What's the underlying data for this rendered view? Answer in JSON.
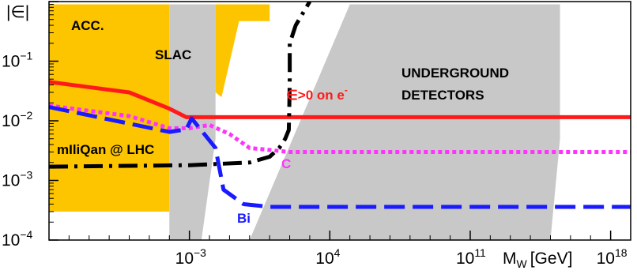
{
  "chart_data": {
    "type": "line",
    "title": "",
    "xlabel": "M_W [GeV]",
    "ylabel": "|∈|",
    "x_scale": "log",
    "y_scale": "log",
    "xlim": [
      1e-10,
      1e+19
    ],
    "ylim": [
      0.0001,
      1
    ],
    "x_ticks": [
      {
        "value": 0.001,
        "base": "10",
        "exp": "−3"
      },
      {
        "value": 10000,
        "base": "10",
        "exp": "4"
      },
      {
        "value": 100000000000,
        "base": "10",
        "exp": "11"
      },
      {
        "value": 1e+18,
        "base": "10",
        "exp": "18"
      }
    ],
    "y_ticks": [
      {
        "value": 0.1,
        "base": "10",
        "exp": "−1"
      },
      {
        "value": 0.01,
        "base": "10",
        "exp": "−2"
      },
      {
        "value": 0.001,
        "base": "10",
        "exp": "−3"
      },
      {
        "value": 0.0001,
        "base": "10",
        "exp": "−4"
      }
    ],
    "regions": [
      {
        "label": "ACC.",
        "color": "#fdc400",
        "points": [
          [
            1e-10,
            0.9
          ],
          [
            0.0001,
            0.9
          ],
          [
            0.0001,
            0.0003
          ],
          [
            1e-10,
            0.0003
          ]
        ]
      },
      {
        "label": "SLAC",
        "color": "#c8c8c8",
        "points": [
          [
            0.0001,
            0.9
          ],
          [
            0.02,
            0.9
          ],
          [
            0.02,
            0.005
          ],
          [
            0.004,
            0.0001
          ],
          [
            0.0001,
            0.0001
          ]
        ]
      },
      {
        "label": "",
        "color": "#fdc400",
        "points": [
          [
            0.02,
            0.9
          ],
          [
            10,
            0.9
          ],
          [
            10,
            0.47
          ],
          [
            0.3,
            0.47
          ],
          [
            0.04,
            0.025
          ],
          [
            0.02,
            0.03
          ]
        ]
      },
      {
        "label": "UNDERGROUND DETECTORS",
        "color": "#c8c8c8",
        "points": [
          [
            100000,
            0.9
          ],
          [
            3000000000000000.0,
            0.9
          ],
          [
            3000000000000000.0,
            0.005
          ],
          [
            1000000000000000.0,
            0.0001
          ],
          [
            1,
            0.0001
          ]
        ]
      }
    ],
    "series": [
      {
        "name": "∈>0 on e",
        "name_sup": "-",
        "color": "#ff1a1a",
        "dash": "solid",
        "x": [
          1e-10,
          1e-06,
          0.0001,
          0.0007,
          0.001,
          1e+19
        ],
        "y": [
          0.045,
          0.03,
          0.016,
          0.0115,
          0.0115,
          0.0115
        ]
      },
      {
        "name": "C",
        "color": "#ff33ff",
        "dash": "dotted",
        "x": [
          1e-10,
          1e-06,
          0.0001,
          0.001,
          0.01,
          0.1,
          1,
          100,
          1e+19
        ],
        "y": [
          0.018,
          0.012,
          0.0075,
          0.0075,
          0.0085,
          0.006,
          0.0035,
          0.003,
          0.003
        ]
      },
      {
        "name": "Bi",
        "color": "#1a1aff",
        "dash": "long-dash",
        "x": [
          1e-10,
          1e-06,
          0.0001,
          0.0007,
          0.0013,
          0.02,
          0.05,
          0.5,
          10,
          1e+19
        ],
        "y": [
          0.017,
          0.009,
          0.0065,
          0.0072,
          0.011,
          0.0035,
          0.0007,
          0.0004,
          0.00036,
          0.00036
        ]
      },
      {
        "name": "mIliQan @ LHC",
        "color": "#000000",
        "dash": "dash-dot",
        "x": [
          1e-10,
          0.001,
          1,
          10,
          30,
          60,
          90,
          95,
          100,
          100,
          200,
          1000
        ],
        "y": [
          0.0017,
          0.0018,
          0.002,
          0.0025,
          0.0035,
          0.005,
          0.007,
          0.015,
          0.05,
          0.2,
          0.4,
          1
        ]
      }
    ],
    "labels": [
      {
        "text": "ACC.",
        "color": "#000000"
      },
      {
        "text": "SLAC",
        "color": "#000000"
      },
      {
        "text": "UNDERGROUND",
        "color": "#000000"
      },
      {
        "text": "DETECTORS",
        "color": "#000000"
      },
      {
        "text": "mIliQan @ LHC",
        "color": "#000000"
      },
      {
        "text": "∈>0 on e",
        "color": "#ff1a1a"
      },
      {
        "text": "C",
        "color": "#ff33ff"
      },
      {
        "text": "Bi",
        "color": "#1a1aff"
      }
    ]
  }
}
